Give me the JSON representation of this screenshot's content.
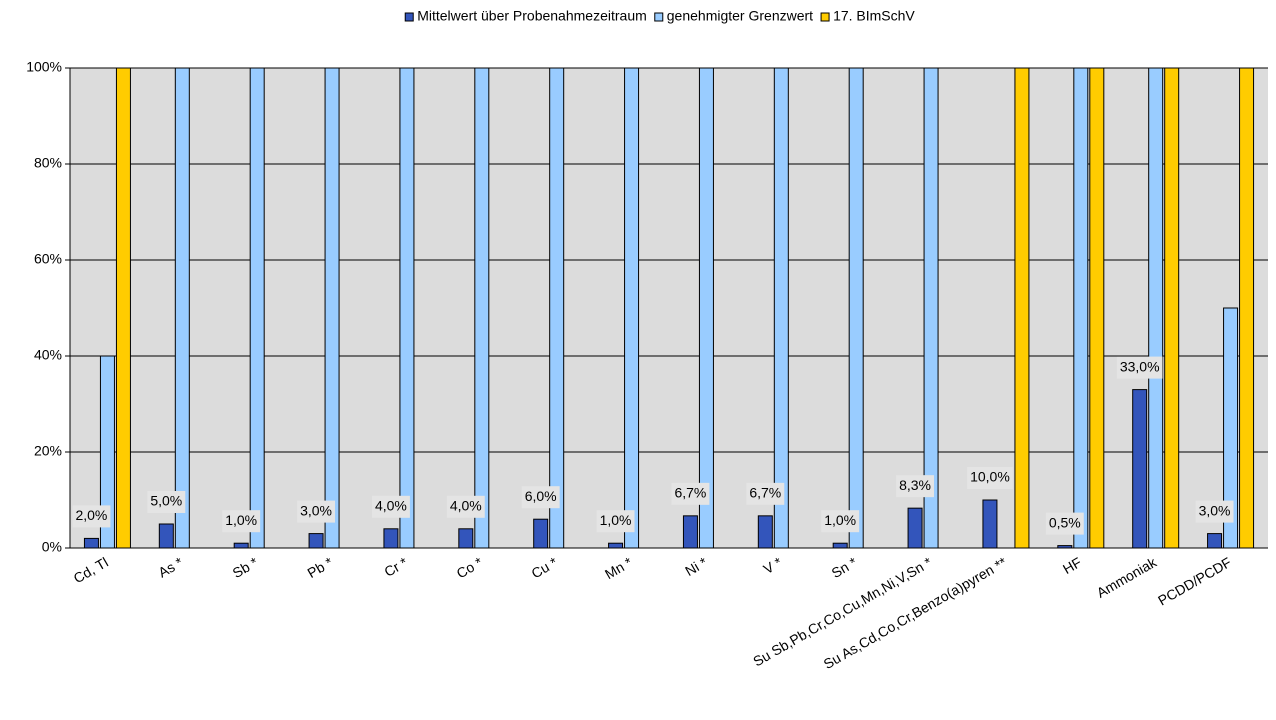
{
  "chart_data": {
    "type": "bar",
    "categories": [
      "Cd, Tl",
      "As *",
      "Sb *",
      "Pb *",
      "Cr *",
      "Co *",
      "Cu *",
      "Mn *",
      "Ni *",
      "V *",
      "Sn *",
      "Su Sb,Pb,Cr,Co,Cu,Mn,Ni,V,Sn *",
      "Su As,Cd,Co,Cr,Benzo(a)pyren **",
      "HF",
      "Ammoniak",
      "PCDD/PCDF"
    ],
    "series": [
      {
        "name": "Mittelwert über Probenahmezeitraum",
        "color": "#3355bb",
        "values": [
          2,
          5,
          1,
          3,
          4,
          4,
          6,
          1,
          6.7,
          6.7,
          1,
          8.3,
          10,
          0.5,
          33,
          3
        ],
        "value_labels": [
          "2,0%",
          "5,0%",
          "1,0%",
          "3,0%",
          "4,0%",
          "4,0%",
          "6,0%",
          "1,0%",
          "6,7%",
          "6,7%",
          "1,0%",
          "8,3%",
          "10,0%",
          "0,5%",
          "33,0%",
          "3,0%"
        ]
      },
      {
        "name": "genehmigter Grenzwert",
        "color": "#99ccff",
        "values": [
          40,
          100,
          100,
          100,
          100,
          100,
          100,
          100,
          100,
          100,
          100,
          100,
          null,
          100,
          100,
          50
        ]
      },
      {
        "name": "17. BImSchV",
        "color": "#ffcc00",
        "values": [
          100,
          null,
          null,
          null,
          null,
          null,
          null,
          null,
          null,
          null,
          null,
          null,
          100,
          100,
          100,
          100
        ]
      }
    ],
    "ylim": [
      0,
      100
    ],
    "yticks": [
      {
        "value": 0,
        "label": "0%"
      },
      {
        "value": 20,
        "label": "20%"
      },
      {
        "value": 40,
        "label": "40%"
      },
      {
        "value": 60,
        "label": "60%"
      },
      {
        "value": 80,
        "label": "80%"
      },
      {
        "value": 100,
        "label": "100%"
      }
    ],
    "grid": true,
    "legend": "top"
  }
}
